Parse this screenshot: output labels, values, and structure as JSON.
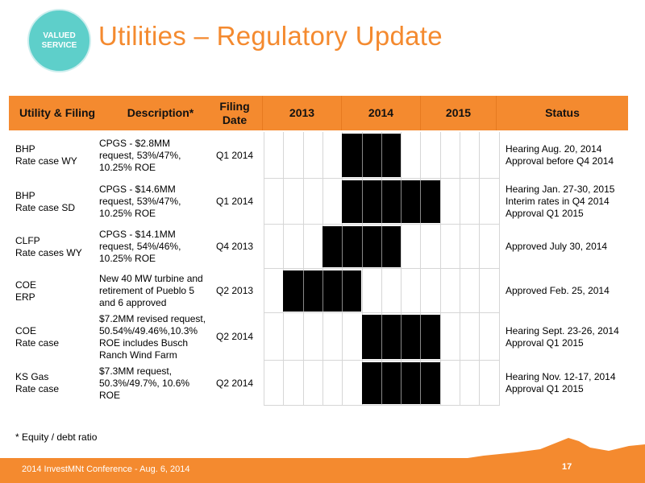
{
  "slide": {
    "badge_line1": "VALUED",
    "badge_line2": "SERVICE",
    "title": "Utilities – Regulatory Update",
    "footnote": "*   Equity / debt ratio",
    "footer": "2014 InvestMNt Conference - Aug. 6, 2014",
    "page_number": "17"
  },
  "colors": {
    "accent": "#f48a2f",
    "badge": "#5ecfca",
    "bar": "#000000"
  },
  "table": {
    "headers": {
      "utility": "Utility & Filing",
      "description": "Description*",
      "filing_date": "Filing\nDate",
      "y2013": "2013",
      "y2014": "2014",
      "y2015": "2015",
      "status": "Status"
    },
    "rows": [
      {
        "utility": "BHP\nRate case WY",
        "description": "CPGS - $2.8MM\nrequest, 53%/47%,\n10.25% ROE",
        "filing_date": "Q1 2014",
        "status": "Hearing Aug. 20, 2014\nApproval before Q4 2014",
        "timeline": {
          "start_quarter": 5,
          "end_quarter": 7
        }
      },
      {
        "utility": "BHP\nRate case SD",
        "description": "CPGS - $14.6MM\nrequest, 53%/47%,\n10.25% ROE",
        "filing_date": "Q1 2014",
        "status": "Hearing Jan. 27-30, 2015\nInterim rates in Q4 2014\nApproval Q1 2015",
        "timeline": {
          "start_quarter": 5,
          "end_quarter": 9
        }
      },
      {
        "utility": "CLFP\nRate cases WY",
        "description": "CPGS - $14.1MM\nrequest, 54%/46%,\n10.25% ROE",
        "filing_date": "Q4 2013",
        "status": "Approved July 30, 2014",
        "timeline": {
          "start_quarter": 4,
          "end_quarter": 7
        }
      },
      {
        "utility": "COE\nERP",
        "description": "New 40 MW turbine and\nretirement of Pueblo 5\nand 6 approved",
        "filing_date": "Q2 2013",
        "status": "Approved Feb. 25, 2014",
        "timeline": {
          "start_quarter": 2,
          "end_quarter": 5
        }
      },
      {
        "utility": "COE\nRate case",
        "description": "$7.2MM revised request,\n50.54%/49.46%,10.3%\nROE includes Busch\nRanch Wind Farm",
        "filing_date": "Q2 2014",
        "status": "Hearing Sept. 23-26, 2014\nApproval Q1 2015",
        "timeline": {
          "start_quarter": 6,
          "end_quarter": 9
        }
      },
      {
        "utility": "KS Gas\nRate case",
        "description": "$7.3MM request,\n50.3%/49.7%, 10.6%\nROE",
        "filing_date": "Q2 2014",
        "status": "Hearing Nov. 12-17, 2014\nApproval Q1 2015",
        "timeline": {
          "start_quarter": 6,
          "end_quarter": 9
        }
      }
    ]
  }
}
